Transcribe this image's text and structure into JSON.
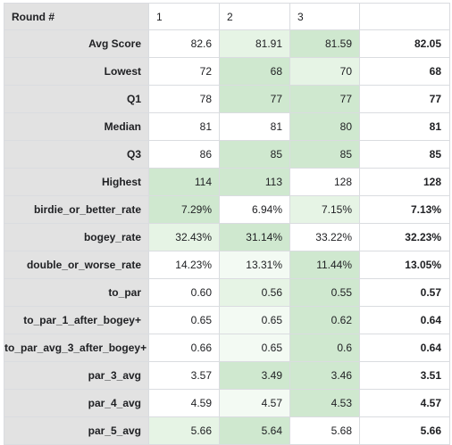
{
  "table": {
    "corner_label": "Round #",
    "columns": [
      "1",
      "2",
      "3",
      ""
    ],
    "shade_colors": {
      "0": "#ffffff",
      "1": "#f3faf3",
      "2": "#e6f4e5",
      "3": "#cfe8cf"
    },
    "rows": [
      {
        "label": "Avg Score",
        "values": [
          "82.6",
          "81.91",
          "81.59"
        ],
        "shades": [
          0,
          2,
          3
        ],
        "total": "82.05"
      },
      {
        "label": "Lowest",
        "values": [
          "72",
          "68",
          "70"
        ],
        "shades": [
          0,
          3,
          2
        ],
        "total": "68"
      },
      {
        "label": "Q1",
        "values": [
          "78",
          "77",
          "77"
        ],
        "shades": [
          0,
          3,
          3
        ],
        "total": "77"
      },
      {
        "label": "Median",
        "values": [
          "81",
          "81",
          "80"
        ],
        "shades": [
          0,
          0,
          3
        ],
        "total": "81"
      },
      {
        "label": "Q3",
        "values": [
          "86",
          "85",
          "85"
        ],
        "shades": [
          0,
          3,
          3
        ],
        "total": "85"
      },
      {
        "label": "Highest",
        "values": [
          "114",
          "113",
          "128"
        ],
        "shades": [
          3,
          3,
          0
        ],
        "total": "128"
      },
      {
        "label": "birdie_or_better_rate",
        "values": [
          "7.29%",
          "6.94%",
          "7.15%"
        ],
        "shades": [
          3,
          0,
          2
        ],
        "total": "7.13%"
      },
      {
        "label": "bogey_rate",
        "values": [
          "32.43%",
          "31.14%",
          "33.22%"
        ],
        "shades": [
          2,
          3,
          0
        ],
        "total": "32.23%"
      },
      {
        "label": "double_or_worse_rate",
        "values": [
          "14.23%",
          "13.31%",
          "11.44%"
        ],
        "shades": [
          0,
          1,
          3
        ],
        "total": "13.05%"
      },
      {
        "label": "to_par",
        "values": [
          "0.60",
          "0.56",
          "0.55"
        ],
        "shades": [
          0,
          2,
          3
        ],
        "total": "0.57"
      },
      {
        "label": "to_par_1_after_bogey+",
        "values": [
          "0.65",
          "0.65",
          "0.62"
        ],
        "shades": [
          0,
          1,
          3
        ],
        "total": "0.64"
      },
      {
        "label": "to_par_avg_3_after_bogey+",
        "values": [
          "0.66",
          "0.65",
          "0.6"
        ],
        "shades": [
          0,
          1,
          3
        ],
        "total": "0.64"
      },
      {
        "label": "par_3_avg",
        "values": [
          "3.57",
          "3.49",
          "3.46"
        ],
        "shades": [
          0,
          3,
          3
        ],
        "total": "3.51"
      },
      {
        "label": "par_4_avg",
        "values": [
          "4.59",
          "4.57",
          "4.53"
        ],
        "shades": [
          0,
          1,
          3
        ],
        "total": "4.57"
      },
      {
        "label": "par_5_avg",
        "values": [
          "5.66",
          "5.64",
          "5.68"
        ],
        "shades": [
          2,
          3,
          0
        ],
        "total": "5.66"
      }
    ]
  }
}
